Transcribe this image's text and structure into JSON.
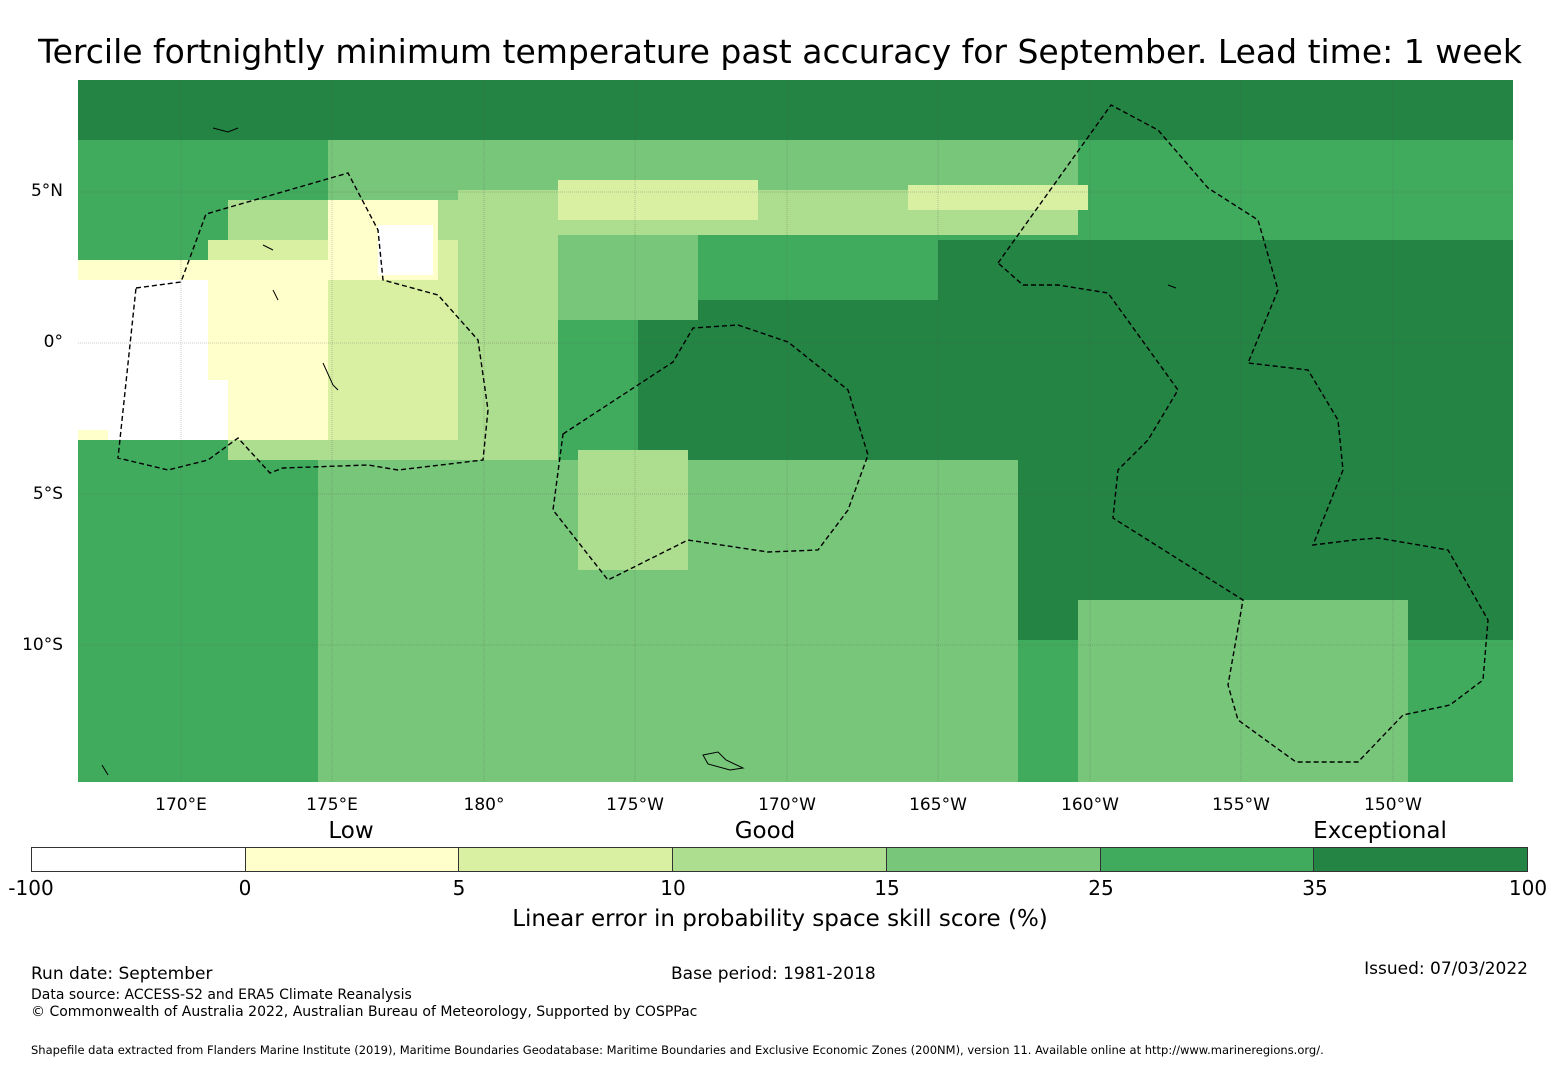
{
  "title": "Tercile fortnightly minimum temperature past accuracy for September. Lead time: 1 week",
  "map": {
    "lat_labels": [
      "5°N",
      "0°",
      "5°S",
      "10°S"
    ],
    "lon_labels": [
      "170°E",
      "175°E",
      "180°",
      "175°W",
      "170°W",
      "165°W",
      "160°W",
      "155°W",
      "150°W"
    ],
    "category_labels": [
      "Low",
      "Good",
      "Exceptional"
    ]
  },
  "colorbar": {
    "ticks": [
      "-100",
      "0",
      "5",
      "10",
      "15",
      "25",
      "35",
      "100"
    ],
    "colors": [
      "#ffffff",
      "#ffffcc",
      "#d9f0a3",
      "#addd8e",
      "#78c679",
      "#41ab5d",
      "#238443"
    ],
    "label": "Linear error in probability space skill score (%)"
  },
  "footer": {
    "run_date": "Run date: September",
    "base_period": "Base period: 1981-2018",
    "issued": "Issued: 07/03/2022",
    "data_source": "Data source: ACCESS-S2 and ERA5 Climate Reanalysis",
    "copyright": "© Commonwealth of Australia 2022, Australian Bureau of Meteorology, Supported by COSPPac",
    "shapefile": "Shapefile data extracted from Flanders Marine Institute (2019), Maritime Boundaries Geodatabase: Maritime Boundaries and Exclusive Economic Zones (200NM), version 11. Available online at http://www.marineregions.org/."
  }
}
